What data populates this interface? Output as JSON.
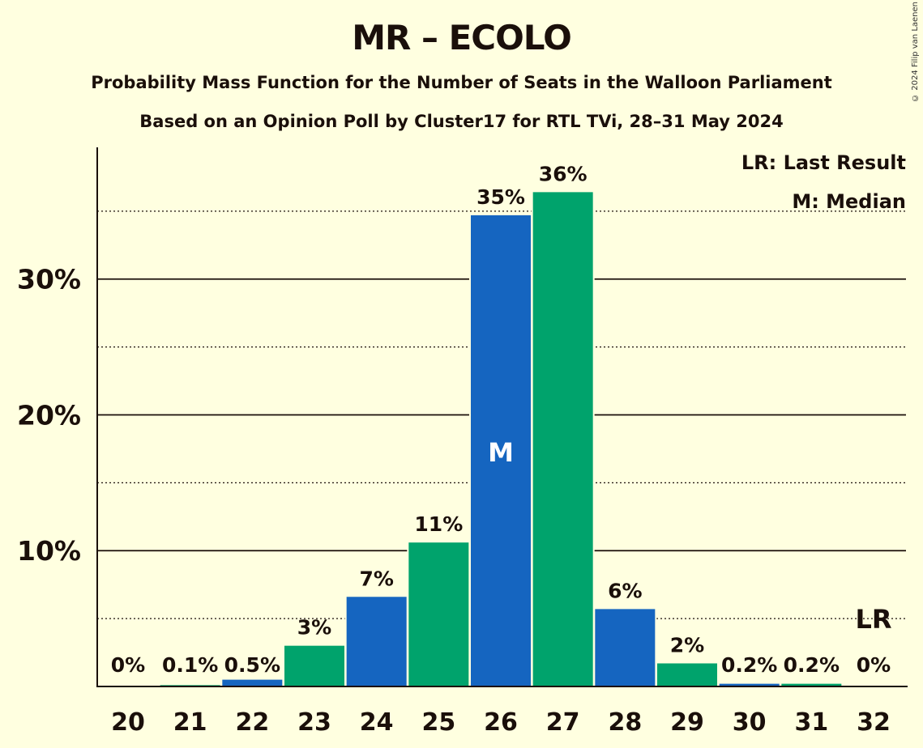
{
  "title": "MR – ECOLO",
  "subtitle1": "Probability Mass Function for the Number of Seats in the Walloon Parliament",
  "subtitle2": "Based on an Opinion Poll by Cluster17 for RTL TVi, 28–31 May 2024",
  "copyright": "© 2024 Filip van Laenen",
  "legend": {
    "last_result": "LR: Last Result",
    "median": "M: Median"
  },
  "markers": {
    "median_label": "M",
    "last_result_label": "LR"
  },
  "colors": {
    "blue": "#1565c0",
    "green": "#00a36c",
    "background": "#ffffe0",
    "text": "#1a0f0a"
  },
  "chart_data": {
    "type": "bar",
    "categories": [
      "20",
      "21",
      "22",
      "23",
      "24",
      "25",
      "26",
      "27",
      "28",
      "29",
      "30",
      "31",
      "32"
    ],
    "values": [
      0,
      0.1,
      0.5,
      3,
      6.6,
      10.6,
      34.7,
      36.4,
      5.7,
      1.7,
      0.2,
      0.2,
      0
    ],
    "data_labels": [
      "0%",
      "0.1%",
      "0.5%",
      "3%",
      "7%",
      "11%",
      "35%",
      "36%",
      "6%",
      "2%",
      "0.2%",
      "0.2%",
      "0%"
    ],
    "bar_colors": [
      "blue",
      "green",
      "blue",
      "green",
      "blue",
      "green",
      "blue",
      "green",
      "blue",
      "green",
      "blue",
      "green",
      "blue"
    ],
    "y_ticks": [
      10,
      20,
      30
    ],
    "y_tick_labels": [
      "10%",
      "20%",
      "30%"
    ],
    "y_minor_ticks": [
      5,
      15,
      25,
      35
    ],
    "ylim": [
      0,
      39.7
    ],
    "median_category": "26",
    "last_result_category": "32",
    "grid": true,
    "legend_position": "top-right"
  }
}
